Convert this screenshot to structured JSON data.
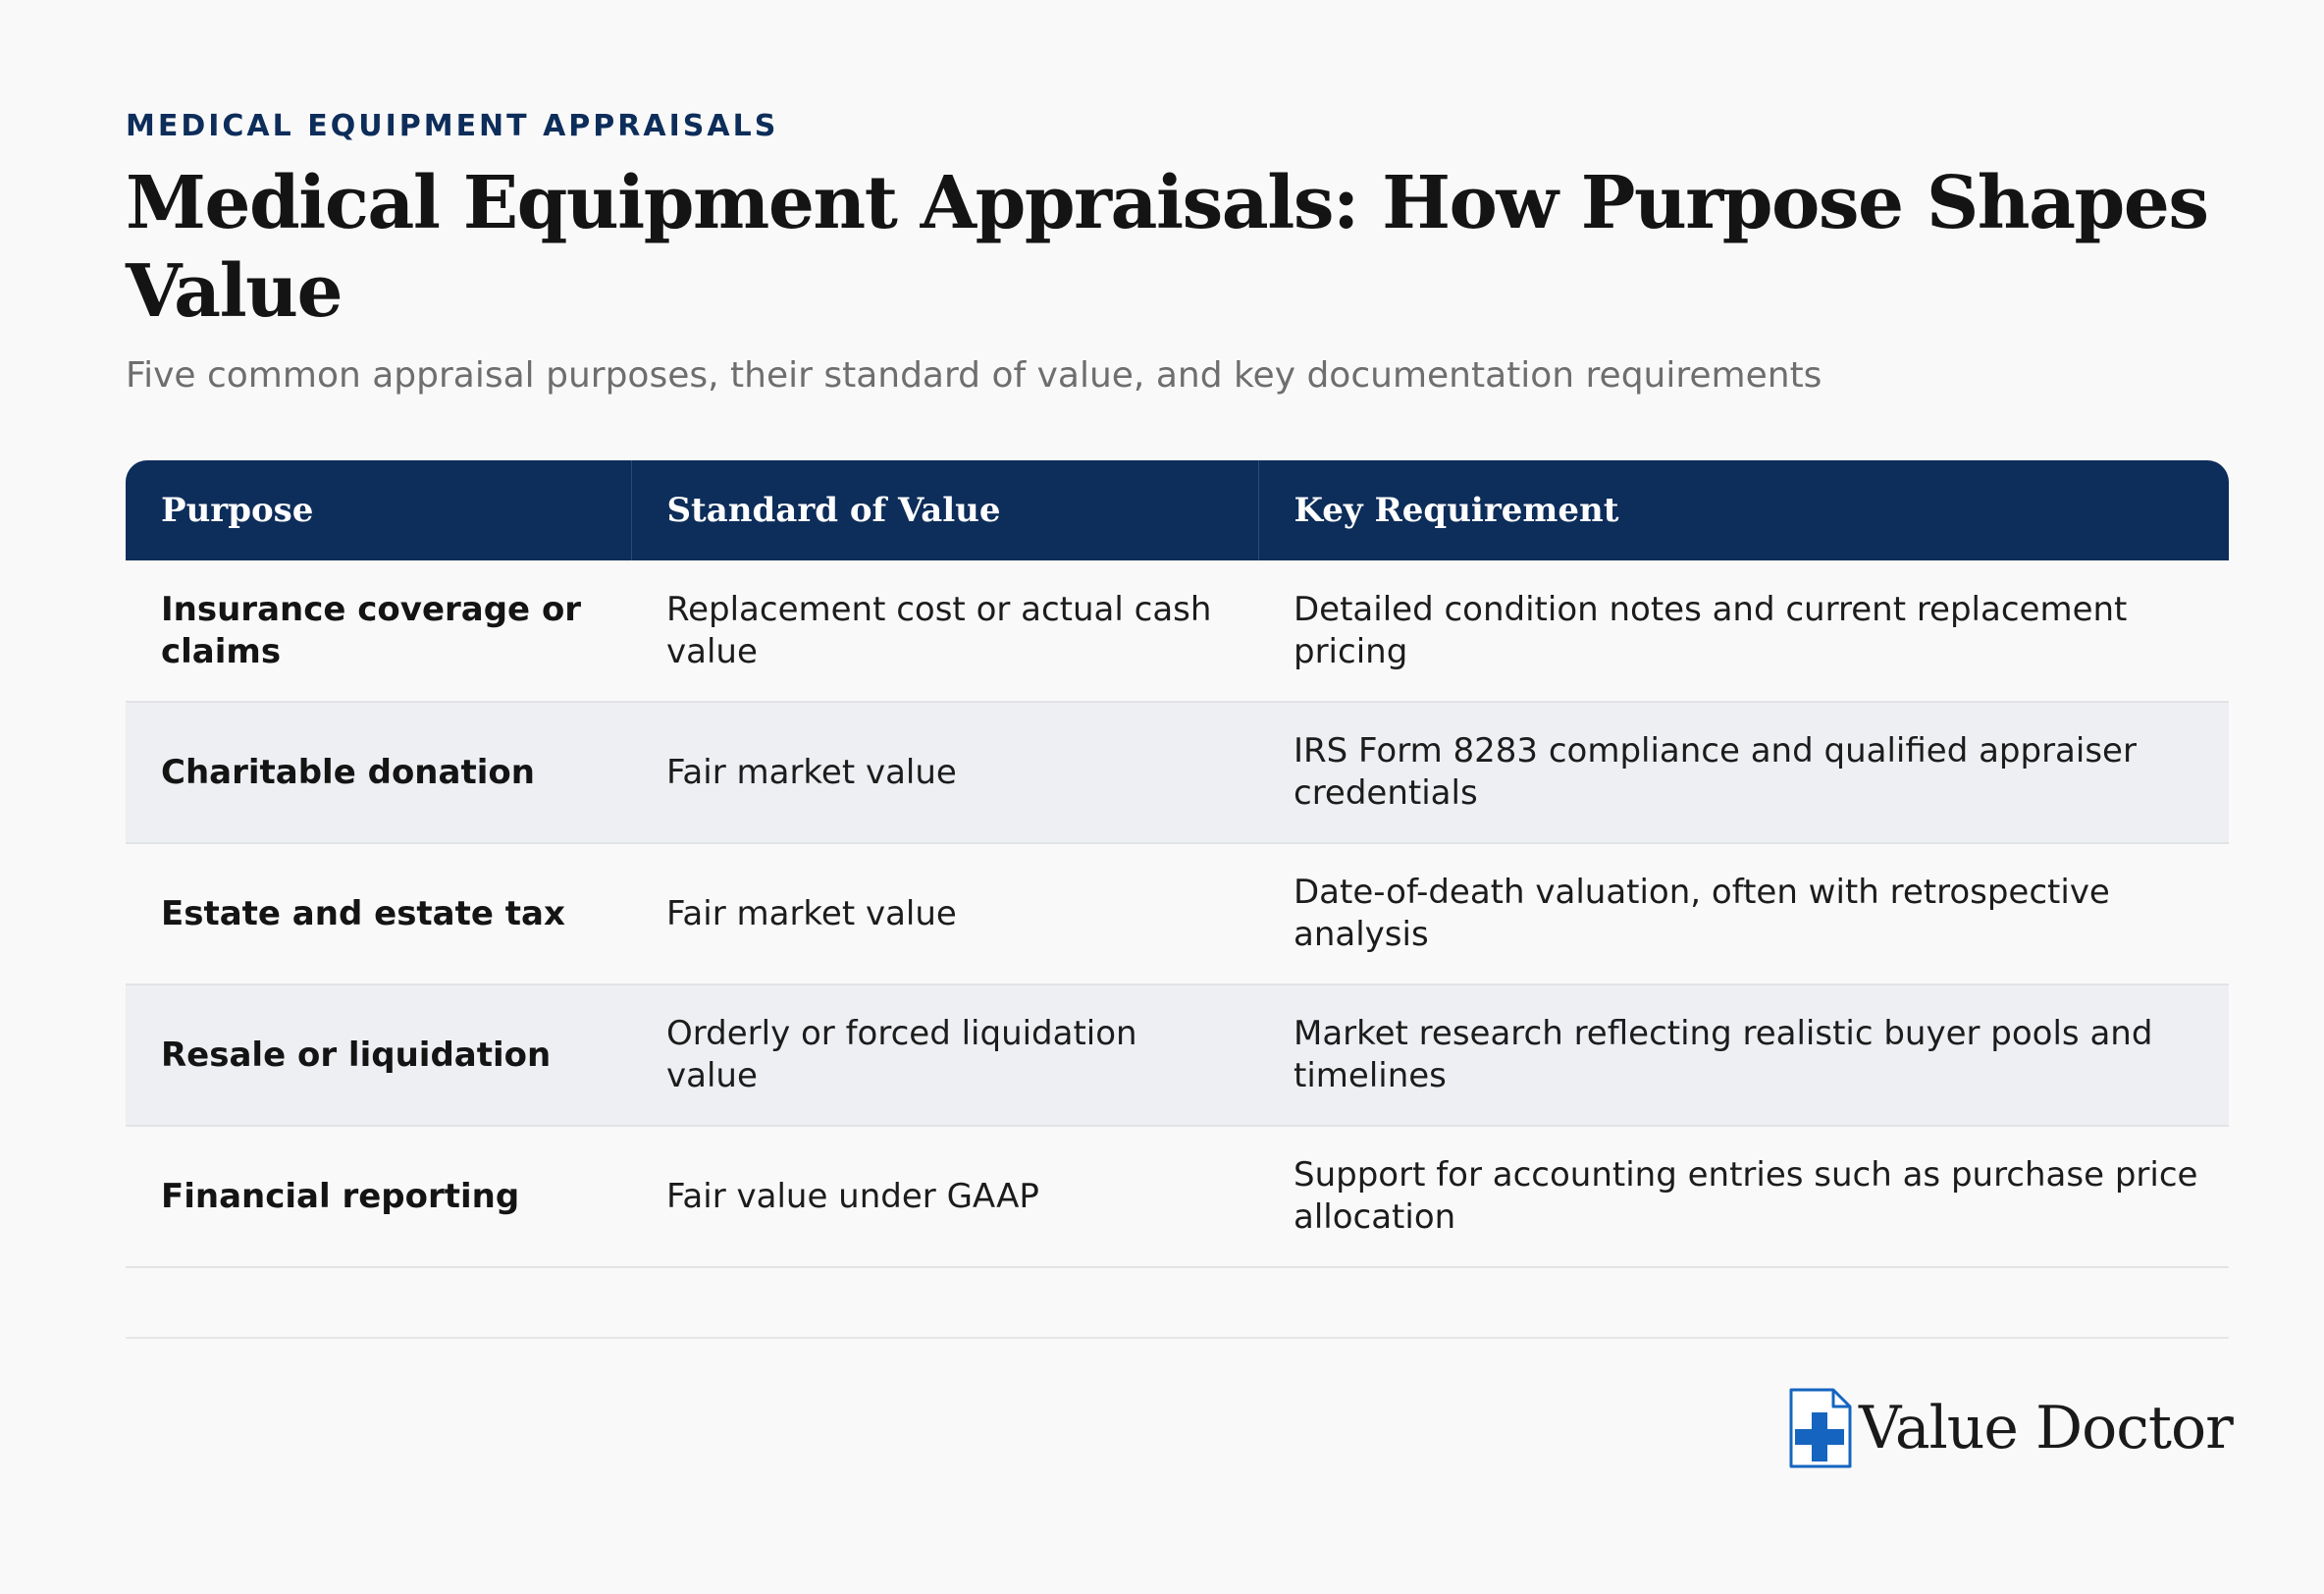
{
  "header": {
    "eyebrow": "MEDICAL EQUIPMENT APPRAISALS",
    "title": "Medical Equipment Appraisals: How Purpose Shapes Value",
    "subtitle": "Five common appraisal purposes, their standard of value, and key documentation requirements"
  },
  "table": {
    "columns": [
      "Purpose",
      "Standard of Value",
      "Key Requirement"
    ],
    "rows": [
      {
        "purpose": "Insurance coverage or claims",
        "standard": "Replacement cost or actual cash value",
        "requirement": "Detailed condition notes and current replacement pricing"
      },
      {
        "purpose": "Charitable donation",
        "standard": "Fair market value",
        "requirement": "IRS Form 8283 compliance and qualified appraiser credentials"
      },
      {
        "purpose": "Estate and estate tax",
        "standard": "Fair market value",
        "requirement": "Date-of-death valuation, often with retrospective analysis"
      },
      {
        "purpose": "Resale or liquidation",
        "standard": "Orderly or forced liquidation value",
        "requirement": "Market research reflecting realistic buyer pools and timelines"
      },
      {
        "purpose": "Financial reporting",
        "standard": "Fair value under GAAP",
        "requirement": "Support for accounting entries such as purchase price allocation"
      }
    ]
  },
  "footer": {
    "logo_icon": "medical-cross-document-icon",
    "logo_text": "Value Doctor"
  },
  "colors": {
    "navy": "#0d2d5a",
    "accent_blue": "#1565c0",
    "row_alt": "#eeeff2",
    "background": "#f9f9f9"
  }
}
